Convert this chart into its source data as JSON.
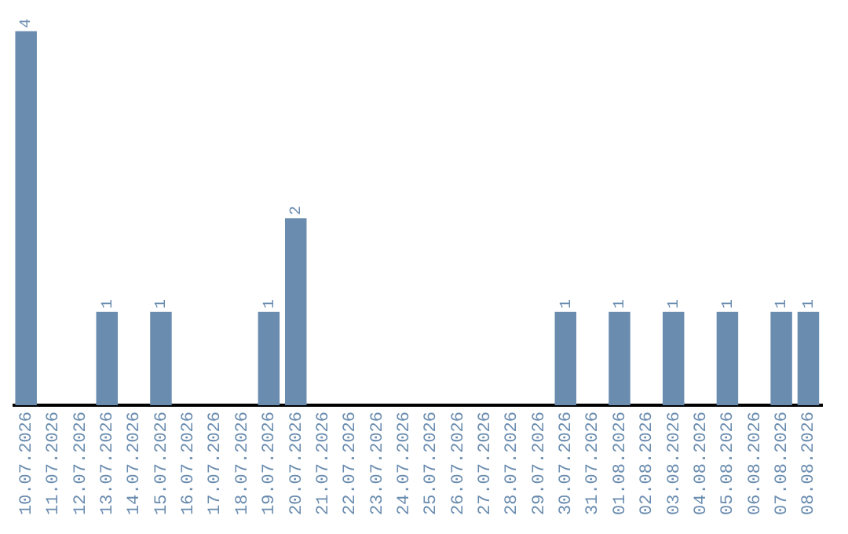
{
  "chart_data": {
    "type": "bar",
    "categories": [
      "10.07.2026",
      "11.07.2026",
      "12.07.2026",
      "13.07.2026",
      "14.07.2026",
      "15.07.2026",
      "16.07.2026",
      "17.07.2026",
      "18.07.2026",
      "19.07.2026",
      "20.07.2026",
      "21.07.2026",
      "22.07.2026",
      "23.07.2026",
      "24.07.2026",
      "25.07.2026",
      "26.07.2026",
      "27.07.2026",
      "28.07.2026",
      "29.07.2026",
      "30.07.2026",
      "31.07.2026",
      "01.08.2026",
      "02.08.2026",
      "03.08.2026",
      "04.08.2026",
      "05.08.2026",
      "06.08.2026",
      "07.08.2026",
      "08.08.2026"
    ],
    "values": [
      4,
      0,
      0,
      1,
      0,
      1,
      0,
      0,
      0,
      1,
      2,
      0,
      0,
      0,
      0,
      0,
      0,
      0,
      0,
      0,
      1,
      0,
      1,
      0,
      1,
      0,
      1,
      0,
      1,
      1
    ],
    "value_labels": [
      "4",
      null,
      null,
      "1",
      null,
      "1",
      null,
      null,
      null,
      "1",
      "2",
      null,
      null,
      null,
      null,
      null,
      null,
      null,
      null,
      null,
      "1",
      null,
      "1",
      null,
      "1",
      null,
      "1",
      null,
      "1",
      "1"
    ],
    "color": "#6a8caf",
    "grid": false,
    "legend": false
  }
}
